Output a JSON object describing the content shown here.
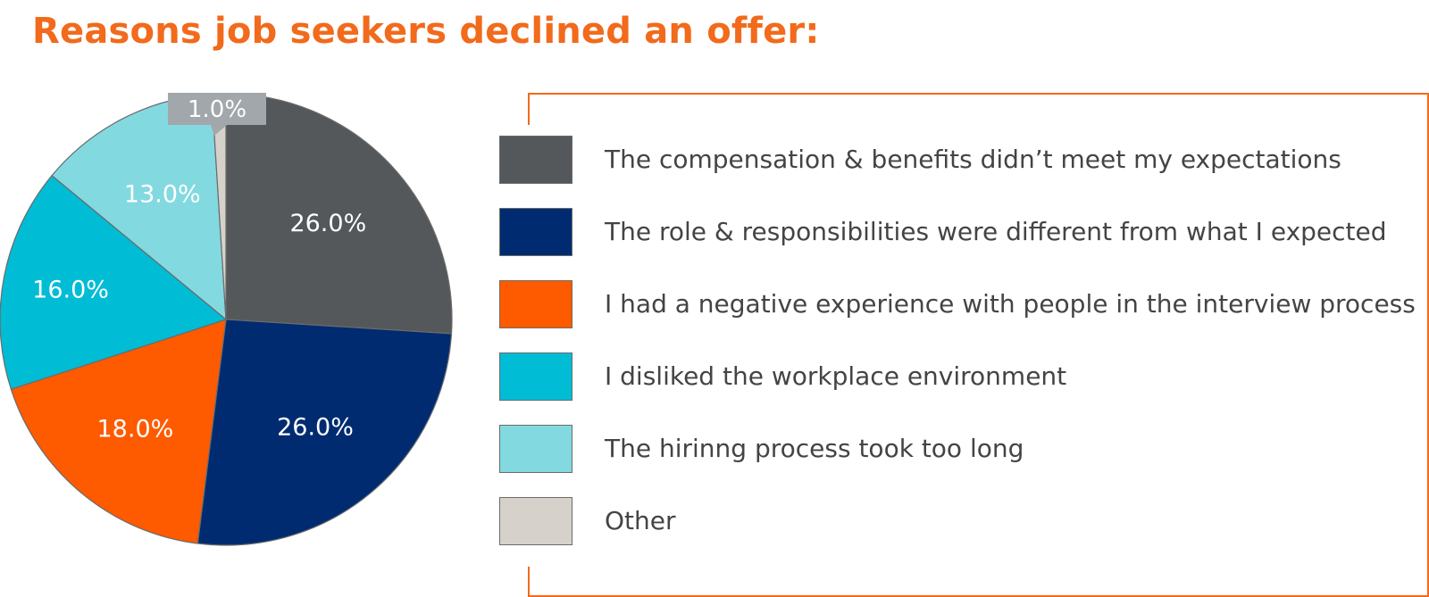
{
  "title": "Reasons job seekers declined an offer:",
  "chart_data": {
    "type": "pie",
    "title": "Reasons job seekers declined an offer:",
    "categories": [
      "The compensation & benefits didn’t meet my expectations",
      "The role & responsibilities were different from what I expected",
      "I had a negative experience with people in the interview process",
      "I disliked the workplace environment",
      "The hirinng process took too long",
      "Other"
    ],
    "values": [
      26.0,
      26.0,
      18.0,
      16.0,
      13.0,
      1.0
    ],
    "value_labels": [
      "26.0%",
      "26.0%",
      "18.0%",
      "16.0%",
      "13.0%",
      "1.0%"
    ],
    "colors": [
      "#54585b",
      "#002b70",
      "#fe5a00",
      "#00bcd5",
      "#83d9e0",
      "#d6d2cb"
    ],
    "legend_position": "right",
    "callout_color": "#a2a7ac"
  }
}
